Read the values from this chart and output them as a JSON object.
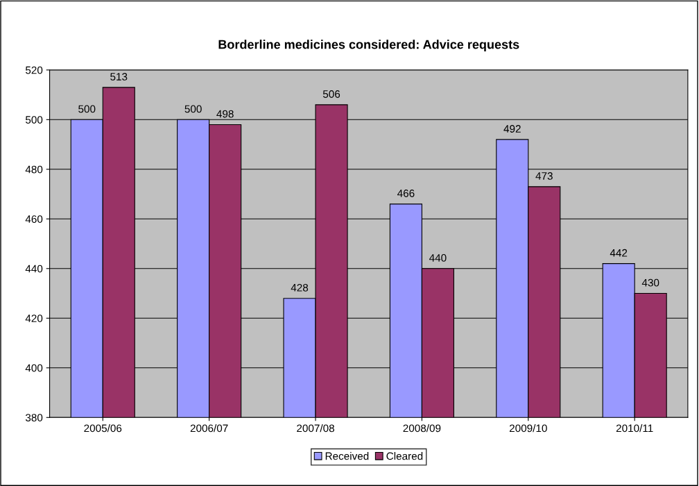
{
  "chart_data": {
    "type": "bar",
    "title": "Borderline medicines considered: Advice requests",
    "categories": [
      "2005/06",
      "2006/07",
      "2007/08",
      "2008/09",
      "2009/10",
      "2010/11"
    ],
    "series": [
      {
        "name": "Received",
        "color": "#9999ff",
        "values": [
          500,
          500,
          428,
          466,
          492,
          442
        ]
      },
      {
        "name": "Cleared",
        "color": "#993366",
        "values": [
          513,
          498,
          506,
          440,
          473,
          430
        ]
      }
    ],
    "ylim": [
      380,
      520
    ],
    "yticks": [
      380,
      400,
      420,
      440,
      460,
      480,
      500,
      520
    ],
    "grid": "y",
    "legend": "bottom",
    "data_labels": true
  }
}
